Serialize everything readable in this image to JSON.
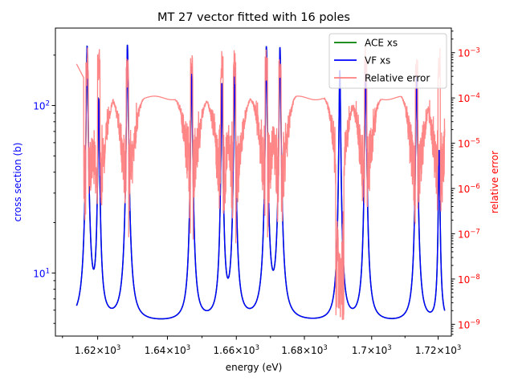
{
  "chart_data": {
    "type": "line",
    "title": "MT 27 vector fitted with 16 poles",
    "xlabel": "energy (eV)",
    "ylabel_left": "cross section (b)",
    "ylabel_right": "relative error",
    "x_scale": "log",
    "y_left_scale": "log",
    "y_right_scale": "log",
    "xlim": [
      1608,
      1724
    ],
    "ylim_left": [
      4.2,
      290
    ],
    "ylim_right": [
      5.5e-10,
      0.0035
    ],
    "x_ticks": [
      {
        "value": 1620,
        "base": "1.62",
        "exp": "3"
      },
      {
        "value": 1640,
        "base": "1.64",
        "exp": "3"
      },
      {
        "value": 1660,
        "base": "1.66",
        "exp": "3"
      },
      {
        "value": 1680,
        "base": "1.68",
        "exp": "3"
      },
      {
        "value": 1700,
        "base": "1.7",
        "exp": "3"
      },
      {
        "value": 1720,
        "base": "1.72",
        "exp": "3"
      }
    ],
    "y_left_ticks": [
      {
        "value": 10,
        "base": "10",
        "exp": "1"
      },
      {
        "value": 100,
        "base": "10",
        "exp": "2"
      }
    ],
    "y_right_ticks": [
      {
        "value": 1e-09,
        "base": "10",
        "exp": "−9"
      },
      {
        "value": 1e-08,
        "base": "10",
        "exp": "−8"
      },
      {
        "value": 1e-07,
        "base": "10",
        "exp": "−7"
      },
      {
        "value": 1e-06,
        "base": "10",
        "exp": "−6"
      },
      {
        "value": 1e-05,
        "base": "10",
        "exp": "−5"
      },
      {
        "value": 0.0001,
        "base": "10",
        "exp": "−4"
      },
      {
        "value": 0.001,
        "base": "10",
        "exp": "−3"
      }
    ],
    "legend": {
      "position": "top-right",
      "entries": [
        {
          "label": "ACE xs",
          "color": "#008000"
        },
        {
          "label": "VF xs",
          "color": "#0000ff"
        },
        {
          "label": "Relative error",
          "color": "#ff8080"
        }
      ]
    },
    "baseline_xs": 5.0,
    "x_range_data": [
      1614,
      1722
    ],
    "resonances": [
      {
        "energy": 1617.0,
        "peak": 225
      },
      {
        "energy": 1620.3,
        "peak": 108
      },
      {
        "energy": 1628.5,
        "peak": 230
      },
      {
        "energy": 1647.0,
        "peak": 170
      },
      {
        "energy": 1655.8,
        "peak": 135
      },
      {
        "energy": 1659.5,
        "peak": 168
      },
      {
        "energy": 1668.8,
        "peak": 225
      },
      {
        "energy": 1672.8,
        "peak": 222
      },
      {
        "energy": 1690.5,
        "peak": 162
      },
      {
        "energy": 1698.2,
        "peak": 175
      },
      {
        "energy": 1713.5,
        "peak": 168
      },
      {
        "energy": 1720.3,
        "peak": 54
      }
    ],
    "series": [
      {
        "name": "ACE xs",
        "color": "#008000"
      },
      {
        "name": "VF xs",
        "color": "#0000ff"
      },
      {
        "name": "Relative error",
        "color": "#ff8080"
      }
    ]
  }
}
